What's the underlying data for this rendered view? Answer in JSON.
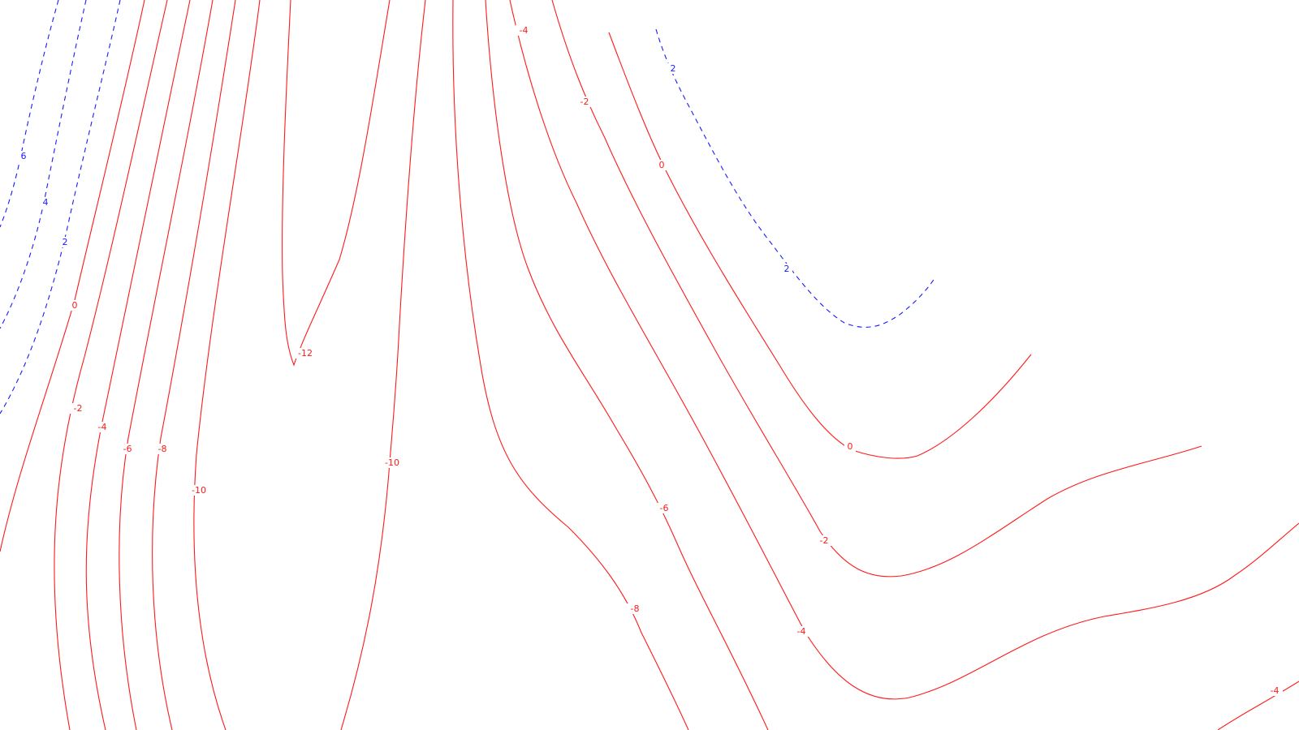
{
  "colors": {
    "background": "#ffffff",
    "negative_and_zero_contours": "#ff1a1a",
    "positive_contours": "#1a1aff"
  },
  "positive_contour_style": "dashed",
  "zero_and_negative_contour_style": "solid",
  "contour_labels": {
    "l1": "6",
    "l2": "4",
    "l3": "2",
    "l4": "0",
    "l5": "-2",
    "l6": "-4",
    "l7": "-6",
    "l8": "-8",
    "l9": "-10",
    "l10": "-12",
    "l11": "-10",
    "l12": "-4",
    "l13": "-2",
    "l14": "0",
    "l15": "2",
    "l16": "2",
    "l17": "0",
    "l18": "-2",
    "l19": "-6",
    "l20": "-8",
    "l21": "-4",
    "l22": "-4"
  }
}
